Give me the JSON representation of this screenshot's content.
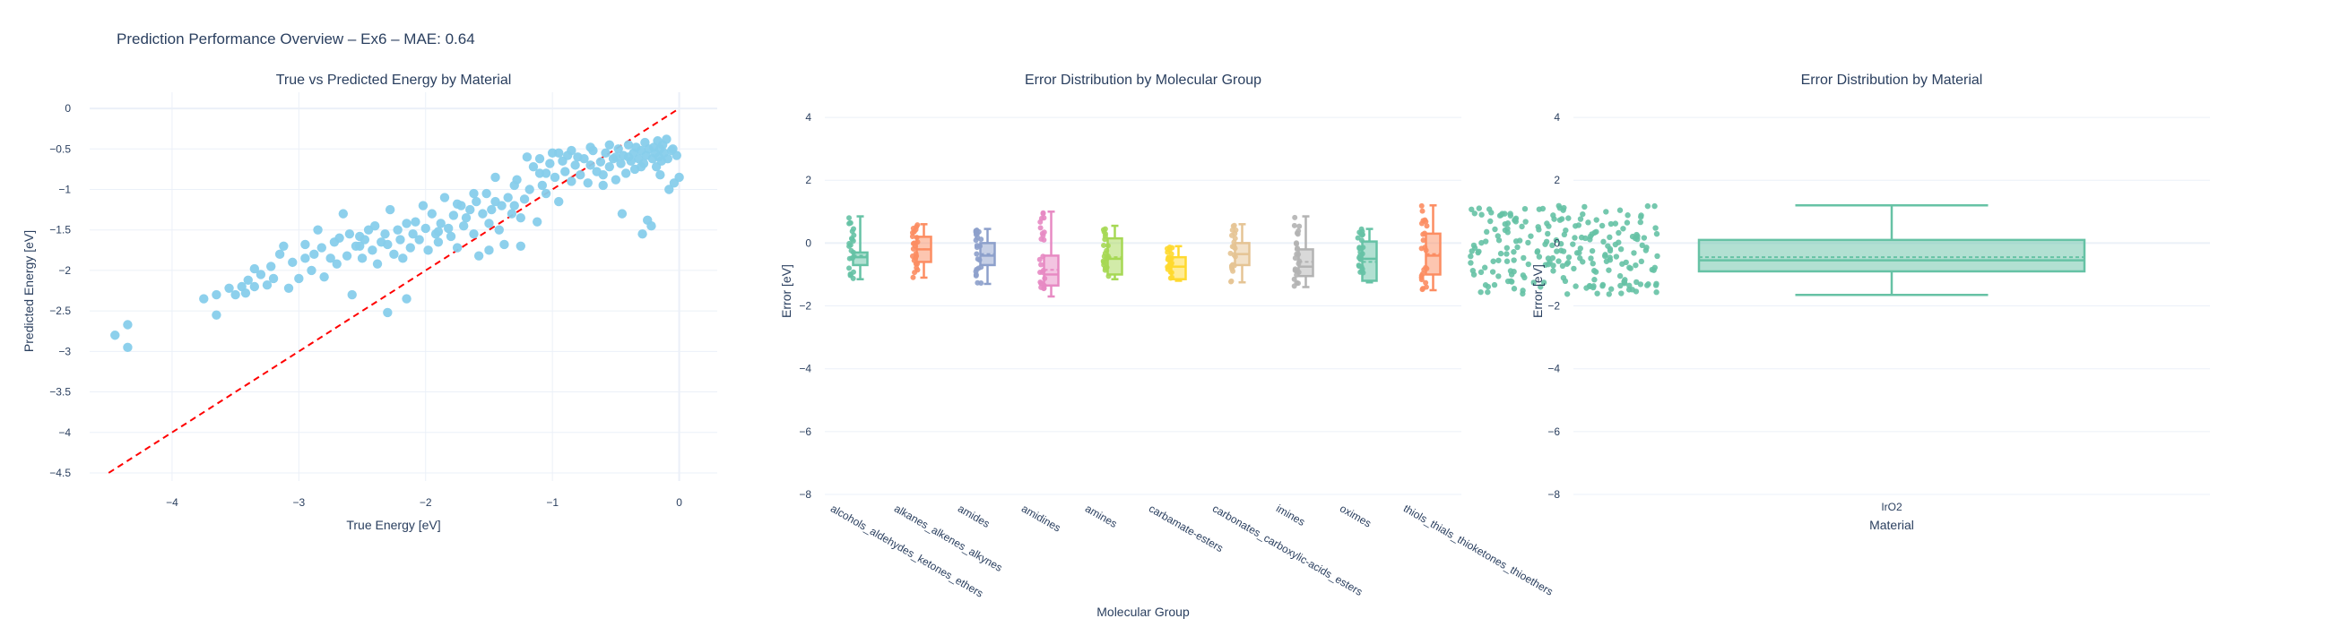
{
  "title": "Prediction Performance Overview – Ex6 – MAE: 0.64",
  "colors": {
    "scatter": "#87ceeb",
    "diagonal": "#ff0000",
    "text": "#2a3f5f",
    "grid": "#ebf0f8"
  },
  "chart_data": [
    {
      "type": "scatter",
      "title": "True vs Predicted Energy by Material",
      "xlabel": "True Energy [eV]",
      "ylabel": "Predicted Energy [eV]",
      "xlim": [
        -4.65,
        0.3
      ],
      "ylim": [
        -4.6,
        0.2
      ],
      "xticks": [
        -4,
        -3,
        -2,
        -1,
        0
      ],
      "yticks": [
        0,
        -0.5,
        -1,
        -1.5,
        -2,
        -2.5,
        -3,
        -3.5,
        -4,
        -4.5
      ],
      "ytick_labels": [
        "0",
        "−0.5",
        "−1",
        "−1.5",
        "−2",
        "−2.5",
        "−3",
        "−3.5",
        "−4",
        "−4.5"
      ],
      "xtick_labels": [
        "−4",
        "−3",
        "−2",
        "−1",
        "0"
      ],
      "diagonal": [
        [
          -4.5,
          -4.5
        ],
        [
          0,
          0
        ]
      ],
      "points": [
        [
          -4.45,
          -2.8
        ],
        [
          -4.35,
          -2.67
        ],
        [
          -4.35,
          -2.95
        ],
        [
          -3.75,
          -2.35
        ],
        [
          -3.65,
          -2.55
        ],
        [
          -3.65,
          -2.3
        ],
        [
          -3.5,
          -2.3
        ],
        [
          -3.45,
          -2.2
        ],
        [
          -3.42,
          -2.28
        ],
        [
          -3.4,
          -2.12
        ],
        [
          -3.35,
          -2.2
        ],
        [
          -3.3,
          -2.05
        ],
        [
          -3.25,
          -2.18
        ],
        [
          -3.22,
          -1.95
        ],
        [
          -3.2,
          -2.1
        ],
        [
          -3.15,
          -1.8
        ],
        [
          -3.12,
          -1.7
        ],
        [
          -3.08,
          -2.22
        ],
        [
          -3.05,
          -1.9
        ],
        [
          -3.0,
          -2.1
        ],
        [
          -2.95,
          -1.85
        ],
        [
          -2.9,
          -2.0
        ],
        [
          -2.88,
          -1.8
        ],
        [
          -2.85,
          -1.5
        ],
        [
          -2.82,
          -1.72
        ],
        [
          -2.8,
          -2.08
        ],
        [
          -2.75,
          -1.85
        ],
        [
          -2.72,
          -1.65
        ],
        [
          -2.7,
          -1.92
        ],
        [
          -2.68,
          -1.6
        ],
        [
          -2.65,
          -1.3
        ],
        [
          -2.62,
          -1.82
        ],
        [
          -2.6,
          -1.55
        ],
        [
          -2.58,
          -2.3
        ],
        [
          -2.55,
          -1.7
        ],
        [
          -2.52,
          -1.58
        ],
        [
          -2.5,
          -1.85
        ],
        [
          -2.48,
          -1.62
        ],
        [
          -2.45,
          -1.5
        ],
        [
          -2.42,
          -1.75
        ],
        [
          -2.4,
          -1.45
        ],
        [
          -2.38,
          -1.92
        ],
        [
          -2.35,
          -1.65
        ],
        [
          -2.32,
          -1.55
        ],
        [
          -2.3,
          -2.52
        ],
        [
          -2.28,
          -1.25
        ],
        [
          -2.25,
          -1.8
        ],
        [
          -2.22,
          -1.5
        ],
        [
          -2.2,
          -1.62
        ],
        [
          -2.18,
          -1.85
        ],
        [
          -2.15,
          -1.42
        ],
        [
          -2.12,
          -1.72
        ],
        [
          -2.1,
          -1.55
        ],
        [
          -2.08,
          -1.4
        ],
        [
          -2.05,
          -1.62
        ],
        [
          -2.02,
          -1.2
        ],
        [
          -2.0,
          -1.48
        ],
        [
          -1.98,
          -1.75
        ],
        [
          -1.95,
          -1.3
        ],
        [
          -1.92,
          -1.55
        ],
        [
          -1.9,
          -1.65
        ],
        [
          -1.88,
          -1.42
        ],
        [
          -1.85,
          -1.1
        ],
        [
          -1.82,
          -1.48
        ],
        [
          -1.8,
          -1.58
        ],
        [
          -1.78,
          -1.32
        ],
        [
          -1.75,
          -1.72
        ],
        [
          -1.72,
          -1.2
        ],
        [
          -1.7,
          -1.45
        ],
        [
          -1.68,
          -1.35
        ],
        [
          -1.65,
          -1.25
        ],
        [
          -1.62,
          -1.55
        ],
        [
          -1.6,
          -1.15
        ],
        [
          -1.58,
          -1.82
        ],
        [
          -1.55,
          -1.3
        ],
        [
          -1.52,
          -1.05
        ],
        [
          -1.5,
          -1.42
        ],
        [
          -1.48,
          -1.25
        ],
        [
          -1.45,
          -1.15
        ],
        [
          -1.42,
          -1.5
        ],
        [
          -1.4,
          -1.2
        ],
        [
          -1.38,
          -1.68
        ],
        [
          -1.35,
          -1.1
        ],
        [
          -1.32,
          -1.3
        ],
        [
          -1.3,
          -1.2
        ],
        [
          -1.28,
          -0.88
        ],
        [
          -1.25,
          -1.35
        ],
        [
          -1.22,
          -1.12
        ],
        [
          -1.2,
          -0.6
        ],
        [
          -1.18,
          -1.0
        ],
        [
          -1.15,
          -0.72
        ],
        [
          -1.12,
          -1.4
        ],
        [
          -1.1,
          -0.8
        ],
        [
          -1.08,
          -0.95
        ],
        [
          -1.05,
          -1.05
        ],
        [
          -1.02,
          -0.68
        ],
        [
          -1.0,
          -0.55
        ],
        [
          -0.98,
          -0.85
        ],
        [
          -0.95,
          -1.15
        ],
        [
          -0.92,
          -0.65
        ],
        [
          -0.9,
          -0.78
        ],
        [
          -0.88,
          -0.58
        ],
        [
          -0.85,
          -0.9
        ],
        [
          -0.82,
          -0.7
        ],
        [
          -0.8,
          -0.6
        ],
        [
          -0.78,
          -0.82
        ],
        [
          -0.75,
          -0.62
        ],
        [
          -0.72,
          -0.92
        ],
        [
          -0.7,
          -0.7
        ],
        [
          -0.68,
          -0.52
        ],
        [
          -0.65,
          -0.78
        ],
        [
          -0.62,
          -0.66
        ],
        [
          -0.6,
          -0.82
        ],
        [
          -0.58,
          -0.55
        ],
        [
          -0.55,
          -0.72
        ],
        [
          -0.52,
          -0.62
        ],
        [
          -0.5,
          -0.88
        ],
        [
          -0.48,
          -0.5
        ],
        [
          -0.46,
          -0.68
        ],
        [
          -0.45,
          -1.3
        ],
        [
          -0.44,
          -0.58
        ],
        [
          -0.42,
          -0.8
        ],
        [
          -0.4,
          -0.45
        ],
        [
          -0.38,
          -0.65
        ],
        [
          -0.36,
          -0.55
        ],
        [
          -0.35,
          -0.75
        ],
        [
          -0.34,
          -0.48
        ],
        [
          -0.32,
          -0.62
        ],
        [
          -0.3,
          -0.52
        ],
        [
          -0.29,
          -1.55
        ],
        [
          -0.28,
          -0.68
        ],
        [
          -0.27,
          -0.42
        ],
        [
          -0.26,
          -0.58
        ],
        [
          -0.25,
          -1.38
        ],
        [
          -0.24,
          -0.5
        ],
        [
          -0.22,
          -1.45
        ],
        [
          -0.21,
          -0.62
        ],
        [
          -0.2,
          -0.48
        ],
        [
          -0.19,
          -0.55
        ],
        [
          -0.18,
          -0.72
        ],
        [
          -0.17,
          -0.4
        ],
        [
          -0.16,
          -0.6
        ],
        [
          -0.15,
          -0.5
        ],
        [
          -0.14,
          -0.65
        ],
        [
          -0.13,
          -0.45
        ],
        [
          -0.12,
          -0.55
        ],
        [
          -0.1,
          -0.38
        ],
        [
          -0.09,
          -0.62
        ],
        [
          -0.08,
          -1.0
        ],
        [
          -0.06,
          -0.52
        ],
        [
          -0.05,
          -0.5
        ],
        [
          -0.04,
          -0.92
        ],
        [
          -0.02,
          -0.58
        ],
        [
          0.0,
          -0.85
        ],
        [
          -1.62,
          -1.05
        ],
        [
          -1.45,
          -0.85
        ],
        [
          -1.3,
          -0.95
        ],
        [
          -1.1,
          -0.62
        ],
        [
          -0.95,
          -0.55
        ],
        [
          -0.85,
          -0.52
        ],
        [
          -0.6,
          -0.95
        ],
        [
          -0.5,
          -0.6
        ],
        [
          -0.3,
          -0.72
        ],
        [
          -0.15,
          -0.82
        ],
        [
          -2.3,
          -1.68
        ],
        [
          -2.15,
          -2.35
        ],
        [
          -1.5,
          -1.75
        ],
        [
          -3.55,
          -2.22
        ],
        [
          -3.35,
          -1.98
        ],
        [
          -2.95,
          -1.68
        ],
        [
          -2.52,
          -1.7
        ],
        [
          -1.9,
          -1.52
        ],
        [
          -1.75,
          -1.18
        ],
        [
          -1.25,
          -1.7
        ],
        [
          -1.05,
          -0.8
        ],
        [
          -0.7,
          -0.48
        ],
        [
          -0.55,
          -0.45
        ],
        [
          -0.4,
          -0.6
        ]
      ]
    },
    {
      "type": "box",
      "title": "Error Distribution by Molecular Group",
      "xlabel": "Molecular Group",
      "ylabel": "Error [eV]",
      "ylim": [
        -8,
        4.8
      ],
      "yticks": [
        4,
        2,
        0,
        -2,
        -4,
        -6,
        -8
      ],
      "ytick_labels": [
        "4",
        "2",
        "0",
        "−2",
        "−4",
        "−6",
        "−8"
      ],
      "categories": [
        "alcohols_aldehydes_ketones_ethers",
        "alkanes_alkenes_alkynes",
        "amides",
        "amidines",
        "amines",
        "carbamate-esters",
        "carbonates_carboxylic-acids_esters",
        "imines",
        "oximes",
        "thiols_thials_thioketones_thioethers"
      ],
      "colors": [
        "#66c2a5",
        "#fc8d62",
        "#8da0cb",
        "#e78ac3",
        "#a6d854",
        "#ffd92f",
        "#e5c494",
        "#b3b3b3",
        "#66c2a5",
        "#fc8d62"
      ],
      "boxes": [
        {
          "min": -1.15,
          "q1": -0.7,
          "median": -0.45,
          "q3": -0.3,
          "max": 0.85,
          "mean": -0.4
        },
        {
          "min": -1.1,
          "q1": -0.6,
          "median": -0.2,
          "q3": 0.2,
          "max": 0.6,
          "mean": -0.2
        },
        {
          "min": -1.3,
          "q1": -0.7,
          "median": -0.4,
          "q3": 0.0,
          "max": 0.45,
          "mean": -0.35
        },
        {
          "min": -1.7,
          "q1": -1.35,
          "median": -1.0,
          "q3": -0.4,
          "max": 1.0,
          "mean": -0.85
        },
        {
          "min": -1.15,
          "q1": -1.0,
          "median": -0.5,
          "q3": 0.15,
          "max": 0.55,
          "mean": -0.45
        },
        {
          "min": -1.2,
          "q1": -1.15,
          "median": -0.75,
          "q3": -0.45,
          "max": -0.1,
          "mean": -0.75
        },
        {
          "min": -1.25,
          "q1": -0.7,
          "median": -0.35,
          "q3": 0.0,
          "max": 0.6,
          "mean": -0.35
        },
        {
          "min": -1.4,
          "q1": -1.05,
          "median": -0.75,
          "q3": -0.2,
          "max": 0.85,
          "mean": -0.6
        },
        {
          "min": -1.25,
          "q1": -1.2,
          "median": -0.5,
          "q3": 0.05,
          "max": 0.45,
          "mean": -0.6
        },
        {
          "min": -1.5,
          "q1": -1.0,
          "median": -0.4,
          "q3": 0.3,
          "max": 1.2,
          "mean": -0.35
        }
      ]
    },
    {
      "type": "box",
      "title": "Error Distribution by Material",
      "xlabel": "Material",
      "ylabel": "Error [eV]",
      "ylim": [
        -8,
        4.8
      ],
      "yticks": [
        4,
        2,
        0,
        -2,
        -4,
        -6,
        -8
      ],
      "ytick_labels": [
        "4",
        "2",
        "0",
        "−2",
        "−4",
        "−6",
        "−8"
      ],
      "categories": [
        "IrO2"
      ],
      "colors": [
        "#66c2a5"
      ],
      "boxes": [
        {
          "min": -1.65,
          "q1": -0.9,
          "median": -0.55,
          "q3": 0.1,
          "max": 1.2,
          "mean": -0.45
        }
      ]
    }
  ]
}
